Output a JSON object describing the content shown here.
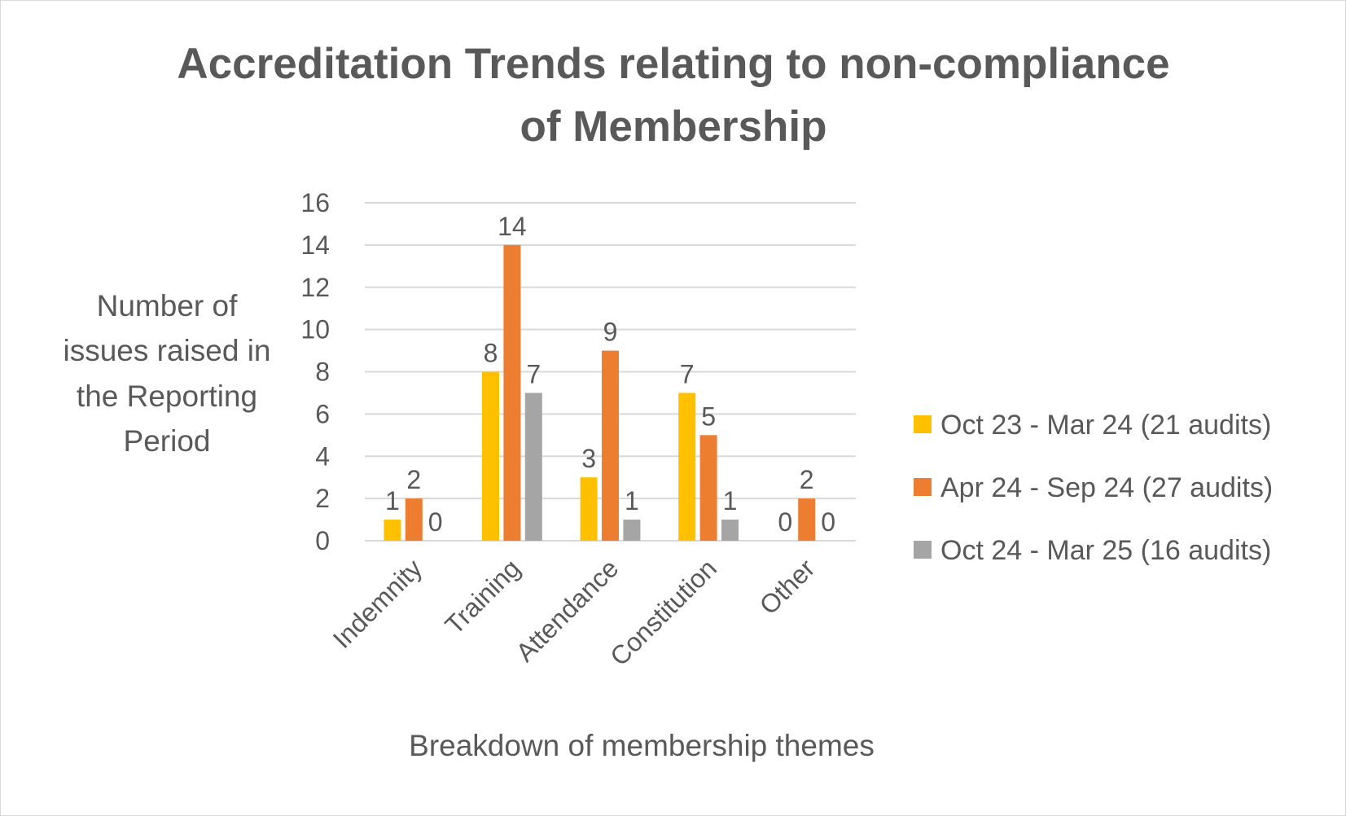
{
  "chart_data": {
    "type": "bar",
    "title": [
      "Accreditation Trends relating to non-compliance",
      "of Membership"
    ],
    "xlabel": "Breakdown of membership themes",
    "ylabel": [
      "Number of",
      "issues raised in",
      "the Reporting",
      "Period"
    ],
    "ylim": [
      0,
      16
    ],
    "yticks": [
      0,
      2,
      4,
      6,
      8,
      10,
      12,
      14,
      16
    ],
    "grid": true,
    "legend_position": "right",
    "categories": [
      "Indemnity",
      "Training",
      "Attendance",
      "Constitution",
      "Other"
    ],
    "series": [
      {
        "name": "Oct 23 - Mar 24 (21 audits)",
        "color": "#FFC000",
        "values": [
          1,
          8,
          3,
          7,
          0
        ]
      },
      {
        "name": "Apr 24 - Sep 24 (27 audits)",
        "color": "#ED7D31",
        "values": [
          2,
          14,
          9,
          5,
          2
        ]
      },
      {
        "name": "Oct 24 - Mar 25 (16 audits)",
        "color": "#A5A5A5",
        "values": [
          0,
          7,
          1,
          1,
          0
        ]
      }
    ]
  }
}
